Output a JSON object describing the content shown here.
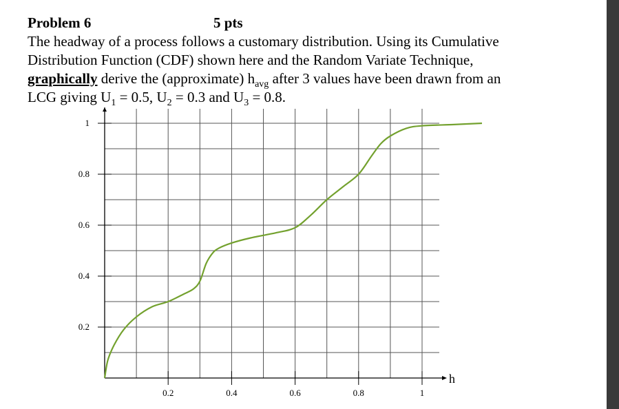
{
  "problem": {
    "title": "Problem 6",
    "points": "5 pts",
    "line1": "The headway of a process follows a customary distribution. Using its Cumulative",
    "line2": "Distribution Function (CDF) shown here and the Random Variate Technique,",
    "line3_bold": "graphically",
    "line3_a": " derive the (approximate) h",
    "line3_sub": "avg",
    "line3_b": " after 3 values have been drawn from an",
    "line4_a": "LCG giving U",
    "u1_sub": "1",
    "u1_val": " = 0.5, U",
    "u2_sub": "2",
    "u2_val": " = 0.3 and U",
    "u3_sub": "3",
    "u3_val": " = 0.8."
  },
  "chart_data": {
    "type": "line",
    "xlabel": "h",
    "ylabel": "",
    "xlim": [
      0,
      1.1
    ],
    "ylim": [
      0,
      1
    ],
    "x_ticks": [
      "0.2",
      "0.4",
      "0.6",
      "0.8",
      "1"
    ],
    "x_tick_values": [
      0.2,
      0.4,
      0.6,
      0.8,
      1.0
    ],
    "y_ticks": [
      "0.2",
      "0.4",
      "0.6",
      "0.8",
      "1"
    ],
    "y_tick_values": [
      0.2,
      0.4,
      0.6,
      0.8,
      1.0
    ],
    "grid": true,
    "line_color": "#73a12e",
    "series": [
      {
        "x": [
          0,
          0.01,
          0.03,
          0.06,
          0.1,
          0.15,
          0.2,
          0.25,
          0.28,
          0.3,
          0.32,
          0.34,
          0.36,
          0.4,
          0.46,
          0.54,
          0.6,
          0.65,
          0.7,
          0.75,
          0.8,
          0.84,
          0.87,
          0.9,
          0.95,
          1.0,
          1.1,
          1.2
        ],
        "y": [
          0,
          0.07,
          0.13,
          0.19,
          0.24,
          0.28,
          0.3,
          0.33,
          0.35,
          0.38,
          0.45,
          0.49,
          0.51,
          0.53,
          0.55,
          0.57,
          0.59,
          0.64,
          0.7,
          0.75,
          0.8,
          0.87,
          0.92,
          0.95,
          0.98,
          0.99,
          0.995,
          1.0
        ]
      }
    ]
  }
}
